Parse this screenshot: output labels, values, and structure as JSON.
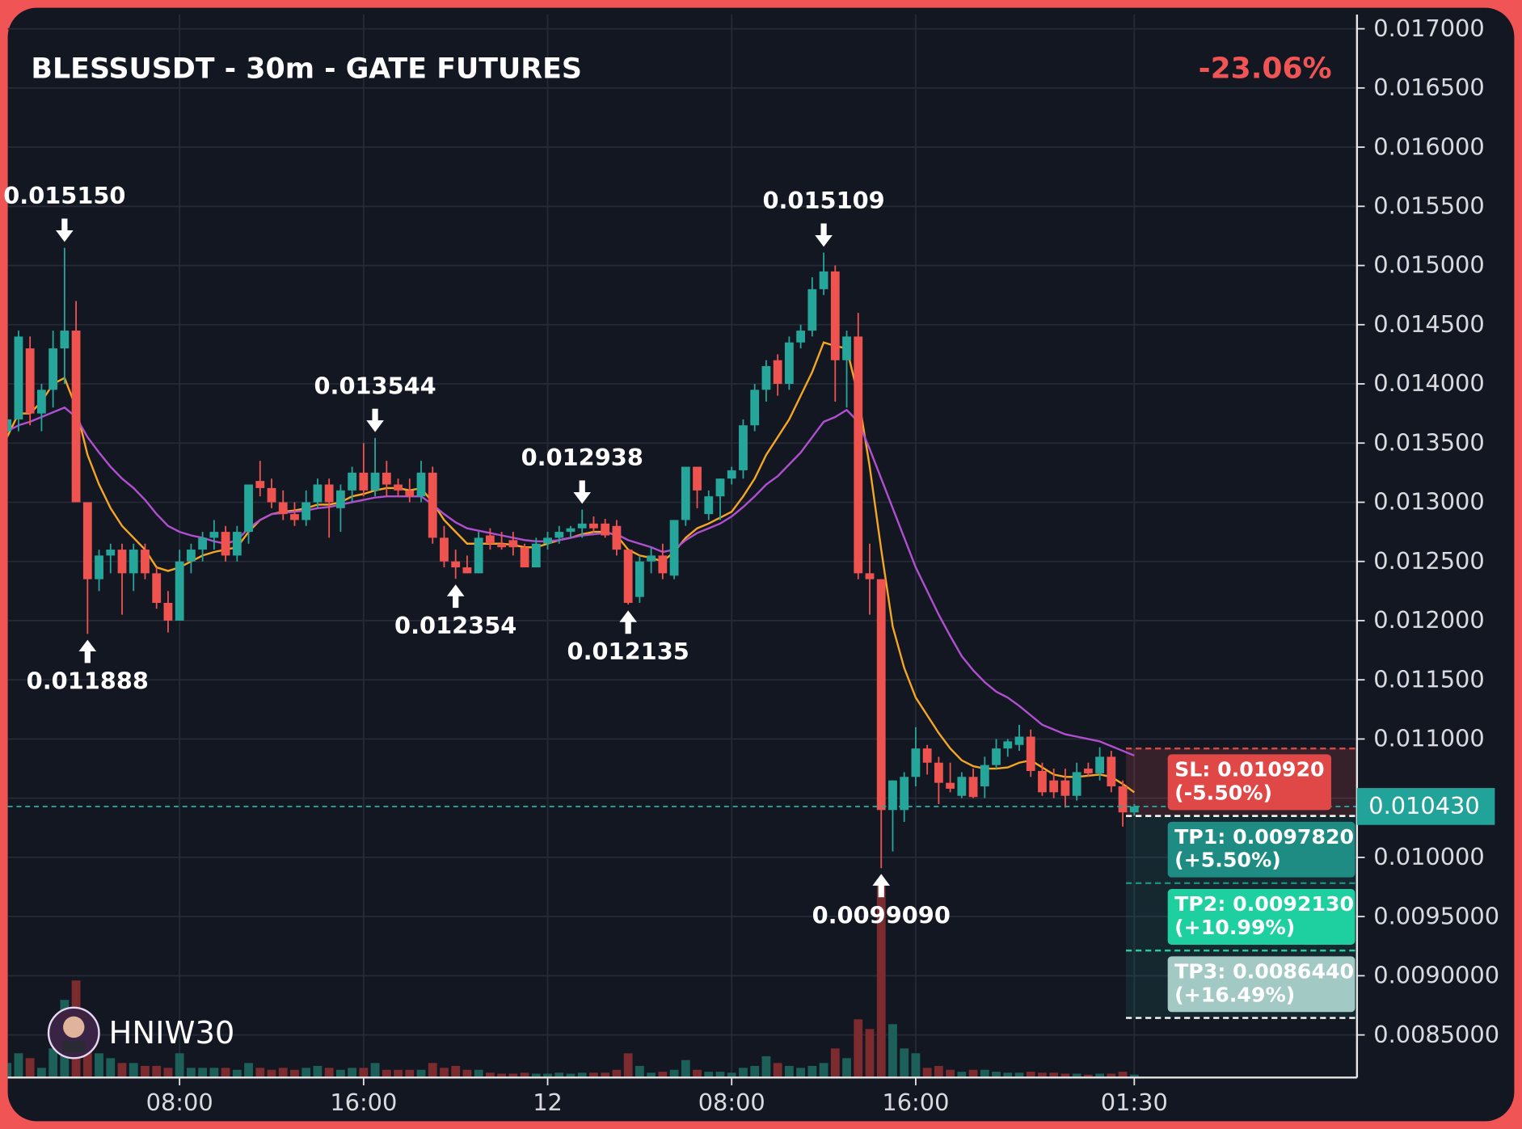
{
  "chart_data": {
    "type": "candlestick",
    "title": "BLESSUSDT - 30m - GATE FUTURES",
    "change": "-23.06%",
    "watermark": "HNIW30",
    "categories": [
      null,
      null,
      null,
      null,
      null,
      null,
      null,
      null,
      null,
      null,
      null,
      null,
      null,
      null,
      null,
      "08:00",
      null,
      null,
      null,
      null,
      null,
      null,
      null,
      null,
      null,
      null,
      null,
      null,
      null,
      null,
      null,
      "16:00",
      null,
      null,
      null,
      null,
      null,
      null,
      null,
      null,
      null,
      null,
      null,
      null,
      null,
      null,
      null,
      "12",
      null,
      null,
      null,
      null,
      null,
      null,
      null,
      null,
      null,
      null,
      null,
      null,
      null,
      null,
      null,
      "08:00",
      null,
      null,
      null,
      null,
      null,
      null,
      null,
      null,
      null,
      null,
      null,
      null,
      null,
      null,
      null,
      "16:00",
      null,
      null,
      null,
      null,
      null,
      null,
      null,
      null,
      null,
      null,
      null,
      null,
      null,
      null,
      null,
      null,
      null,
      null,
      "01:30"
    ],
    "open": [
      0.0136,
      0.0137,
      0.0143,
      0.01375,
      0.01395,
      0.0143,
      0.01445,
      0.013,
      0.01235,
      0.01255,
      0.0126,
      0.0124,
      0.0126,
      0.0124,
      0.01215,
      0.012,
      0.0125,
      0.0126,
      0.0127,
      0.01275,
      0.01255,
      0.01275,
      0.01318,
      0.01312,
      0.013,
      0.0129,
      0.01285,
      0.013,
      0.01315,
      0.01295,
      0.0131,
      0.01325,
      0.0131,
      0.01325,
      0.01315,
      0.0131,
      0.01305,
      0.01325,
      0.0127,
      0.0125,
      0.01245,
      0.0124,
      0.01272,
      0.01265,
      0.01268,
      0.01262,
      0.01245,
      0.01265,
      0.0127,
      0.01275,
      0.01278,
      0.01282,
      0.01282,
      0.0128,
      0.0126,
      0.0122,
      0.0125,
      0.01255,
      0.01238,
      0.01285,
      0.0133,
      0.0129,
      0.01305,
      0.0132,
      0.01327,
      0.01365,
      0.01395,
      0.0142,
      0.014,
      0.01435,
      0.01445,
      0.0148,
      0.01495,
      0.0142,
      0.0144,
      0.0124,
      0.01235,
      0.0104,
      0.0104,
      0.01068,
      0.01092,
      0.0108,
      0.01063,
      0.01052,
      0.01068,
      0.0106,
      0.01078,
      0.01092,
      0.01095,
      0.01102,
      0.01073,
      0.01065,
      0.01065,
      0.01052,
      0.01075,
      0.01071,
      0.01085,
      0.0106,
      0.01038
    ],
    "high": [
      0.01375,
      0.01445,
      0.0144,
      0.014,
      0.01445,
      0.01515,
      0.0147,
      0.013,
      0.0126,
      0.01265,
      0.01265,
      0.01265,
      0.01265,
      0.01245,
      0.01225,
      0.0126,
      0.01265,
      0.01275,
      0.01285,
      0.0128,
      0.0128,
      0.01315,
      0.01335,
      0.0132,
      0.0131,
      0.013,
      0.0131,
      0.0132,
      0.0132,
      0.01315,
      0.0133,
      0.0135,
      0.013544,
      0.01335,
      0.0132,
      0.0132,
      0.01335,
      0.0133,
      0.0128,
      0.0126,
      0.01255,
      0.01275,
      0.01278,
      0.01275,
      0.01275,
      0.01265,
      0.0127,
      0.01275,
      0.0128,
      0.0128,
      0.012938,
      0.01288,
      0.01286,
      0.01285,
      0.0126,
      0.01255,
      0.01262,
      0.01265,
      0.01285,
      0.0133,
      0.0133,
      0.0131,
      0.0132,
      0.0133,
      0.0137,
      0.014,
      0.0142,
      0.01425,
      0.0144,
      0.0145,
      0.0149,
      0.015109,
      0.015,
      0.01445,
      0.0146,
      0.01265,
      0.01235,
      0.01065,
      0.01072,
      0.0111,
      0.01095,
      0.01085,
      0.0108,
      0.01072,
      0.01075,
      0.01085,
      0.011,
      0.011,
      0.01112,
      0.01108,
      0.0108,
      0.01075,
      0.01075,
      0.0108,
      0.0108,
      0.01093,
      0.0109,
      0.01065,
      0.01045
    ],
    "low": [
      0.01355,
      0.0136,
      0.01365,
      0.0136,
      0.0138,
      0.014,
      0.013,
      0.011888,
      0.01225,
      0.0124,
      0.01205,
      0.01225,
      0.01235,
      0.0121,
      0.0119,
      0.012,
      0.0124,
      0.0125,
      0.0126,
      0.0125,
      0.0125,
      0.01265,
      0.01305,
      0.01295,
      0.01285,
      0.0128,
      0.0128,
      0.01295,
      0.0127,
      0.01275,
      0.013,
      0.01305,
      0.01305,
      0.01305,
      0.01305,
      0.013,
      0.013,
      0.01265,
      0.01245,
      0.012354,
      0.0124,
      0.0124,
      0.0126,
      0.0126,
      0.01255,
      0.01245,
      0.01245,
      0.0126,
      0.01265,
      0.0127,
      0.0127,
      0.01275,
      0.0127,
      0.01255,
      0.012135,
      0.01215,
      0.0124,
      0.01235,
      0.01235,
      0.0128,
      0.01295,
      0.01285,
      0.01285,
      0.01315,
      0.0132,
      0.0136,
      0.01385,
      0.0139,
      0.01395,
      0.0143,
      0.0144,
      0.01475,
      0.01385,
      0.0138,
      0.01235,
      0.01205,
      0.009909,
      0.01005,
      0.0103,
      0.0106,
      0.0107,
      0.01045,
      0.01055,
      0.0105,
      0.0105,
      0.0105,
      0.01075,
      0.01085,
      0.0109,
      0.01068,
      0.01052,
      0.0105,
      0.01042,
      0.01048,
      0.01068,
      0.01065,
      0.01055,
      0.01026,
      0.01035
    ],
    "close": [
      0.0137,
      0.0144,
      0.01375,
      0.01395,
      0.0143,
      0.01445,
      0.013,
      0.01235,
      0.01255,
      0.0126,
      0.0124,
      0.0126,
      0.0124,
      0.01215,
      0.012,
      0.0125,
      0.0126,
      0.0127,
      0.01275,
      0.01255,
      0.01275,
      0.01315,
      0.01312,
      0.013,
      0.0129,
      0.01285,
      0.013,
      0.01315,
      0.013,
      0.0131,
      0.01325,
      0.0131,
      0.01325,
      0.01315,
      0.0131,
      0.01305,
      0.01325,
      0.0127,
      0.0125,
      0.01245,
      0.0124,
      0.0127,
      0.01265,
      0.01262,
      0.01262,
      0.01245,
      0.01265,
      0.0127,
      0.01275,
      0.01278,
      0.01282,
      0.01278,
      0.01272,
      0.0126,
      0.01215,
      0.0125,
      0.01255,
      0.0124,
      0.01285,
      0.0133,
      0.0131,
      0.01305,
      0.0132,
      0.01327,
      0.01365,
      0.01395,
      0.01415,
      0.014,
      0.01435,
      0.01445,
      0.0148,
      0.01495,
      0.0142,
      0.0144,
      0.0124,
      0.01235,
      0.0104,
      0.01065,
      0.01068,
      0.01092,
      0.0108,
      0.01063,
      0.01058,
      0.01068,
      0.01051,
      0.01078,
      0.01092,
      0.01098,
      0.01102,
      0.01073,
      0.01055,
      0.01055,
      0.01052,
      0.01072,
      0.01071,
      0.01085,
      0.0106,
      0.01038,
      0.01043
    ],
    "volume": [
      15,
      25,
      20,
      10,
      30,
      80,
      100,
      60,
      25,
      20,
      15,
      15,
      12,
      12,
      10,
      25,
      10,
      10,
      10,
      10,
      8,
      15,
      10,
      8,
      10,
      8,
      10,
      12,
      10,
      8,
      10,
      10,
      15,
      8,
      8,
      8,
      8,
      15,
      10,
      12,
      8,
      8,
      5,
      4,
      4,
      5,
      4,
      4,
      5,
      4,
      5,
      5,
      5,
      8,
      25,
      12,
      5,
      6,
      8,
      18,
      8,
      6,
      6,
      5,
      10,
      12,
      22,
      15,
      12,
      10,
      12,
      15,
      30,
      20,
      60,
      50,
      198,
      55,
      30,
      25,
      10,
      12,
      8,
      6,
      8,
      8,
      6,
      5,
      5,
      6,
      5,
      5,
      4,
      4,
      3,
      4,
      4,
      6,
      3
    ],
    "up_color": "#26a69a",
    "down_color": "#ef5350",
    "volume_up_color": "#1d5f59",
    "volume_down_color": "#7c2b2e",
    "ma_lines": [
      {
        "color": "#f5a623",
        "values": [
          0.01355,
          0.01375,
          0.01375,
          0.01385,
          0.014,
          0.01405,
          0.0138,
          0.0134,
          0.01315,
          0.01295,
          0.0128,
          0.0127,
          0.0126,
          0.01245,
          0.01242,
          0.01245,
          0.0125,
          0.01255,
          0.01258,
          0.0126,
          0.01262,
          0.01275,
          0.01285,
          0.0129,
          0.01292,
          0.01293,
          0.01295,
          0.01298,
          0.01298,
          0.013,
          0.01305,
          0.01307,
          0.0131,
          0.01312,
          0.01312,
          0.0131,
          0.01312,
          0.013,
          0.01285,
          0.01275,
          0.01265,
          0.01265,
          0.01265,
          0.01265,
          0.01264,
          0.01262,
          0.01262,
          0.01265,
          0.01268,
          0.0127,
          0.01273,
          0.01275,
          0.01275,
          0.01272,
          0.0126,
          0.01255,
          0.01253,
          0.0125,
          0.01258,
          0.0127,
          0.01278,
          0.01282,
          0.01287,
          0.01292,
          0.01305,
          0.0132,
          0.0134,
          0.01355,
          0.0137,
          0.0139,
          0.0141,
          0.01435,
          0.01432,
          0.0143,
          0.0139,
          0.0133,
          0.0126,
          0.01195,
          0.0116,
          0.01135,
          0.0112,
          0.01105,
          0.01092,
          0.01082,
          0.01077,
          0.01075,
          0.01075,
          0.01076,
          0.0108,
          0.01082,
          0.01076,
          0.0107,
          0.01068,
          0.01068,
          0.01069,
          0.0107,
          0.01068,
          0.01062,
          0.01055
        ]
      },
      {
        "color": "#b04fd0",
        "values": [
          0.0136,
          0.01365,
          0.01368,
          0.01372,
          0.01376,
          0.0138,
          0.01372,
          0.01355,
          0.01342,
          0.0133,
          0.0132,
          0.01312,
          0.01302,
          0.0129,
          0.0128,
          0.01275,
          0.01272,
          0.0127,
          0.01267,
          0.01265,
          0.01268,
          0.01278,
          0.01285,
          0.0129,
          0.01291,
          0.01292,
          0.01293,
          0.01295,
          0.01296,
          0.01298,
          0.013,
          0.01302,
          0.01304,
          0.01305,
          0.01305,
          0.01305,
          0.01305,
          0.01298,
          0.0129,
          0.01283,
          0.01278,
          0.01276,
          0.01274,
          0.01272,
          0.0127,
          0.01268,
          0.01267,
          0.01267,
          0.01268,
          0.0127,
          0.01272,
          0.01273,
          0.01274,
          0.01273,
          0.01268,
          0.01265,
          0.01262,
          0.01258,
          0.0126,
          0.01268,
          0.01274,
          0.01278,
          0.01282,
          0.01288,
          0.01296,
          0.01305,
          0.01315,
          0.01322,
          0.01332,
          0.01342,
          0.01355,
          0.01368,
          0.01372,
          0.01378,
          0.01368,
          0.01345,
          0.0132,
          0.01295,
          0.0127,
          0.01245,
          0.01225,
          0.01205,
          0.01187,
          0.0117,
          0.01158,
          0.01148,
          0.0114,
          0.01135,
          0.01128,
          0.0112,
          0.01112,
          0.01108,
          0.01104,
          0.01102,
          0.011,
          0.01098,
          0.01094,
          0.0109,
          0.01086
        ]
      }
    ],
    "annotations": [
      {
        "value": 0.01515,
        "label": "0.015150"
      },
      {
        "value": 0.011888,
        "label": "0.011888"
      },
      {
        "value": 0.013544,
        "label": "0.013544"
      },
      {
        "value": 0.012354,
        "label": "0.012354"
      },
      {
        "value": 0.012938,
        "label": "0.012938"
      },
      {
        "value": 0.012135,
        "label": "0.012135"
      },
      {
        "value": 0.015109,
        "label": "0.015109"
      },
      {
        "value": 0.009909,
        "label": "0.0099090"
      }
    ],
    "entry": 0.01035,
    "levels": [
      {
        "label": "SL: 0.010920",
        "change": "(-5.50%)",
        "value": 0.01092,
        "color": "#e04848"
      },
      {
        "label": "TP1: 0.0097820",
        "change": "(+5.50%)",
        "value": 0.009782,
        "color": "#1e8c82"
      },
      {
        "label": "TP2: 0.0092130",
        "change": "(+10.99%)",
        "value": 0.009213,
        "color": "#1ecfa0"
      },
      {
        "label": "TP3: 0.0086440",
        "change": "(+16.49%)",
        "value": 0.008644,
        "color": "#a3c9c5"
      }
    ],
    "price_label": {
      "value": 0.01043,
      "label": "0.010430"
    },
    "ylim": [
      0.00814,
      0.01712
    ],
    "yticks": [
      {
        "value": 0.017,
        "label": "0.017000"
      },
      {
        "value": 0.0165,
        "label": "0.016500"
      },
      {
        "value": 0.016,
        "label": "0.016000"
      },
      {
        "value": 0.0155,
        "label": "0.015500"
      },
      {
        "value": 0.015,
        "label": "0.015000"
      },
      {
        "value": 0.0145,
        "label": "0.014500"
      },
      {
        "value": 0.014,
        "label": "0.014000"
      },
      {
        "value": 0.0135,
        "label": "0.013500"
      },
      {
        "value": 0.013,
        "label": "0.013000"
      },
      {
        "value": 0.0125,
        "label": "0.012500"
      },
      {
        "value": 0.012,
        "label": "0.012000"
      },
      {
        "value": 0.0115,
        "label": "0.011500"
      },
      {
        "value": 0.011,
        "label": "0.011000"
      },
      {
        "value": 0.0105,
        "label": "0.010500"
      },
      {
        "value": 0.01,
        "label": "0.010000"
      },
      {
        "value": 0.0095,
        "label": "0.0095000"
      },
      {
        "value": 0.009,
        "label": "0.0090000"
      },
      {
        "value": 0.0085,
        "label": "0.0085000"
      }
    ],
    "grid": true
  }
}
